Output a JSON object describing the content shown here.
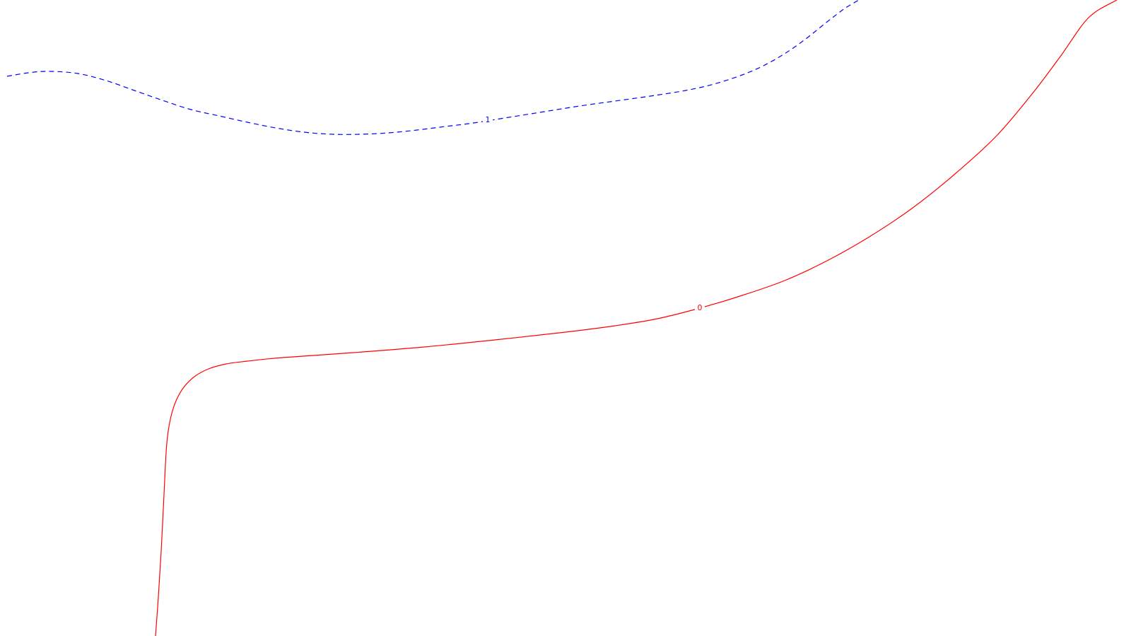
{
  "chart_data": {
    "type": "line",
    "plot_kind": "contour",
    "title": "",
    "xlabel": "",
    "ylabel": "",
    "grid": false,
    "axes_visible": false,
    "legend": "none",
    "series": [
      {
        "label": "1",
        "color": "#0000ff",
        "dash": "dashed",
        "label_at": [
          690,
          170
        ],
        "x": [
          10,
          40,
          70,
          110,
          150,
          190,
          230,
          270,
          310,
          350,
          390,
          430,
          470,
          510,
          550,
          590,
          630,
          670,
          720,
          770,
          820,
          870,
          920,
          970,
          1010,
          1050,
          1080,
          1110,
          1140,
          1170,
          1195,
          1215
        ],
        "y": [
          108,
          103,
          101,
          104,
          114,
          128,
          142,
          155,
          164,
          173,
          181,
          187,
          190,
          190,
          188,
          184,
          179,
          174,
          166,
          158,
          150,
          143,
          136,
          128,
          119,
          106,
          93,
          76,
          55,
          31,
          12,
          0
        ]
      },
      {
        "label": "0",
        "color": "#ff0000",
        "dash": "solid",
        "label_at": [
          990,
          436
        ],
        "x": [
          220,
          224,
          228,
          232,
          235,
          238,
          243,
          250,
          260,
          275,
          295,
          320,
          350,
          400,
          500,
          600,
          700,
          800,
          870,
          930,
          990,
          1050,
          1110,
          1170,
          1230,
          1290,
          1350,
          1410,
          1460,
          1500,
          1540,
          1580
        ],
        "y": [
          900,
          845,
          780,
          700,
          640,
          610,
          585,
          565,
          548,
          533,
          522,
          515,
          511,
          506,
          499,
          491,
          481,
          470,
          461,
          451,
          436,
          418,
          397,
          369,
          335,
          295,
          247,
          192,
          133,
          80,
          25,
          0
        ]
      }
    ]
  }
}
